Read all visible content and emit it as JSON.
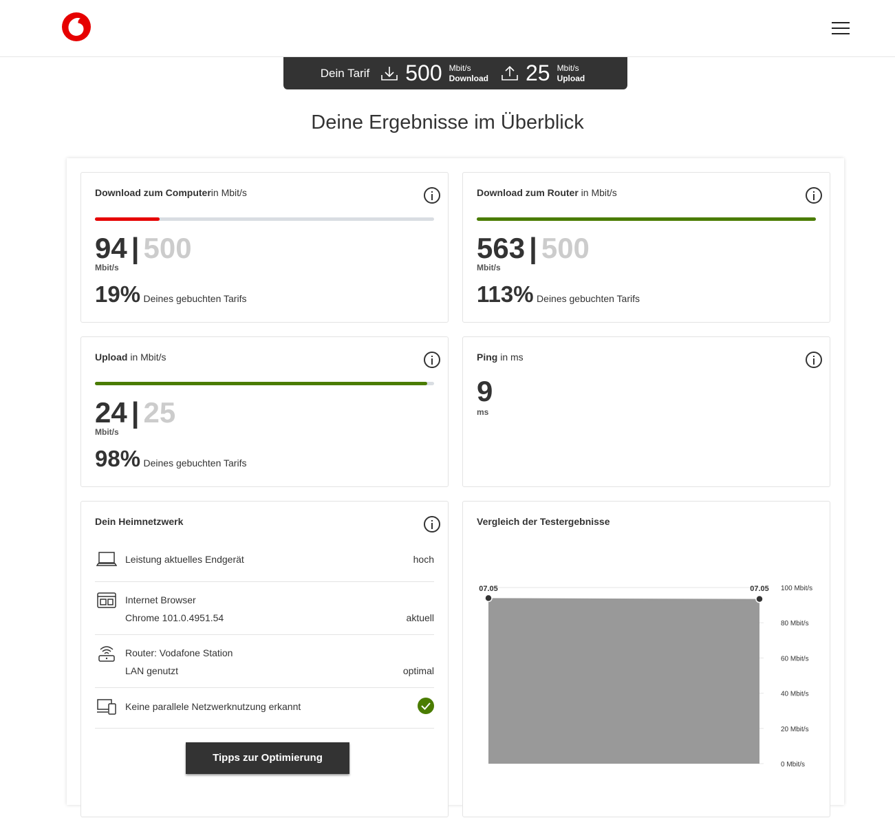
{
  "header": {
    "logo": "vodafone-logo",
    "menu_icon": "hamburger-menu-icon"
  },
  "tarif": {
    "label": "Dein Tarif",
    "download_value": "500",
    "download_unit": "Mbit/s",
    "download_label": "Download",
    "upload_value": "25",
    "upload_unit": "Mbit/s",
    "upload_label": "Upload"
  },
  "headline": "Deine Ergebnisse im Überblick",
  "cards": {
    "download_computer": {
      "title": "Download zum Computer",
      "unit": "in Mbit/s",
      "value": "94",
      "max": "500",
      "value_unit": "Mbit/s",
      "percent": "19%",
      "percent_text": "Deines gebuchten Tarifs",
      "progress": 0.19,
      "color": "#e60000"
    },
    "download_router": {
      "title": "Download zum Router",
      "unit": " in Mbit/s",
      "value": "563",
      "max": "500",
      "value_unit": "Mbit/s",
      "percent": "113%",
      "percent_text": "Deines gebuchten Tarifs",
      "progress": 1.0,
      "color": "#4a7c00"
    },
    "upload": {
      "title": "Upload",
      "unit": " in Mbit/s",
      "value": "24",
      "max": "25",
      "value_unit": "Mbit/s",
      "percent": "98%",
      "percent_text": "Deines gebuchten Tarifs",
      "progress": 0.98,
      "color": "#4a7c00"
    },
    "ping": {
      "title": "Ping",
      "unit": " in ms",
      "value": "9",
      "value_unit": "ms"
    }
  },
  "network": {
    "title": "Dein Heimnetzwerk",
    "rows": [
      {
        "icon": "laptop-icon",
        "line1": "Leistung aktuelles Endgerät",
        "line2": "",
        "status": "hoch"
      },
      {
        "icon": "browser-icon",
        "line1": "Internet Browser",
        "line2": "Chrome 101.0.4951.54",
        "status": "aktuell"
      },
      {
        "icon": "router-wifi-icon",
        "line1": "Router: Vodafone Station",
        "line2": "LAN genutzt",
        "status": "optimal"
      },
      {
        "icon": "devices-icon",
        "line1": "Keine parallele Netzwerknutzung erkannt",
        "line2": "",
        "status": "check-icon"
      }
    ],
    "button": "Tipps zur Optimierung"
  },
  "comparison": {
    "title": "Vergleich der Testergebnisse"
  },
  "chart_data": {
    "type": "area",
    "x": [
      "07.05",
      "07.05"
    ],
    "series": [
      {
        "values": [
          94,
          93.5
        ]
      }
    ],
    "ylim": [
      0,
      100
    ],
    "yticks": [
      "100 Mbit/s",
      "80 Mbit/s",
      "60 Mbit/s",
      "40 Mbit/s",
      "20 Mbit/s",
      "0 Mbit/s"
    ],
    "ytick_values": [
      100,
      80,
      60,
      40,
      20,
      0
    ],
    "color": "#999999"
  }
}
